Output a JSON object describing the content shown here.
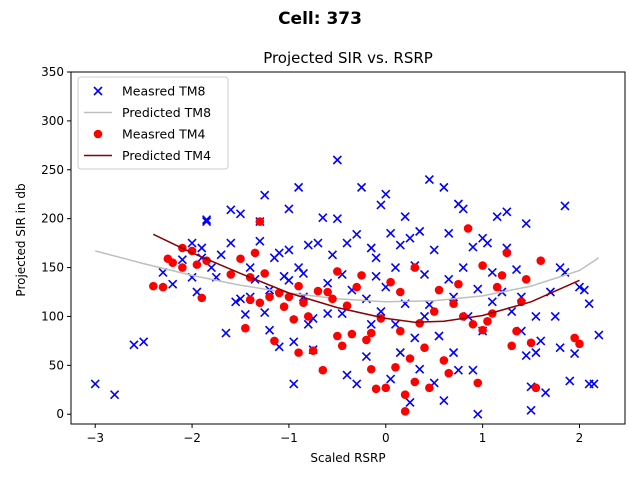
{
  "figure": {
    "suptitle": "Cell: 373"
  },
  "chart_data": {
    "type": "scatter",
    "title": "Projected SIR vs. RSRP",
    "xlabel": "Scaled RSRP",
    "ylabel": "Projected SIR in db",
    "xlim": [
      -3.25,
      2.47
    ],
    "ylim": [
      -10,
      350
    ],
    "xticks": [
      -3,
      -2,
      -1,
      0,
      1,
      2
    ],
    "yticks": [
      0,
      50,
      100,
      150,
      200,
      250,
      300,
      350
    ],
    "grid": false,
    "legend_placement": "top-left",
    "series": [
      {
        "name": "Measred TM8",
        "kind": "scatter",
        "marker": "x",
        "color": "#0000ff",
        "points": [
          [
            -3.0,
            31
          ],
          [
            -2.8,
            20
          ],
          [
            -2.6,
            71
          ],
          [
            -2.5,
            74
          ],
          [
            -2.3,
            145
          ],
          [
            -2.2,
            133
          ],
          [
            -2.1,
            158
          ],
          [
            -2.0,
            175
          ],
          [
            -2.0,
            140
          ],
          [
            -1.95,
            125
          ],
          [
            -1.9,
            160
          ],
          [
            -1.9,
            170
          ],
          [
            -1.85,
            199
          ],
          [
            -1.85,
            197
          ],
          [
            -1.8,
            150
          ],
          [
            -1.75,
            140
          ],
          [
            -1.7,
            163
          ],
          [
            -1.65,
            83
          ],
          [
            -1.6,
            209
          ],
          [
            -1.6,
            175
          ],
          [
            -1.55,
            115
          ],
          [
            -1.5,
            205
          ],
          [
            -1.5,
            118
          ],
          [
            -1.45,
            102
          ],
          [
            -1.4,
            150
          ],
          [
            -1.4,
            120
          ],
          [
            -1.35,
            138
          ],
          [
            -1.3,
            197
          ],
          [
            -1.3,
            177
          ],
          [
            -1.25,
            224
          ],
          [
            -1.25,
            104
          ],
          [
            -1.2,
            86
          ],
          [
            -1.2,
            127
          ],
          [
            -1.15,
            160
          ],
          [
            -1.1,
            69
          ],
          [
            -1.1,
            165
          ],
          [
            -1.05,
            141
          ],
          [
            -1.0,
            210
          ],
          [
            -1.0,
            168
          ],
          [
            -1.0,
            137
          ],
          [
            -0.95,
            31
          ],
          [
            -0.95,
            74
          ],
          [
            -0.9,
            150
          ],
          [
            -0.9,
            232
          ],
          [
            -0.85,
            120
          ],
          [
            -0.85,
            144
          ],
          [
            -0.8,
            92
          ],
          [
            -0.8,
            173
          ],
          [
            -0.75,
            98
          ],
          [
            -0.75,
            66
          ],
          [
            -0.7,
            175
          ],
          [
            -0.65,
            201
          ],
          [
            -0.6,
            134
          ],
          [
            -0.6,
            103
          ],
          [
            -0.55,
            163
          ],
          [
            -0.5,
            200
          ],
          [
            -0.5,
            260
          ],
          [
            -0.45,
            143
          ],
          [
            -0.45,
            103
          ],
          [
            -0.4,
            40
          ],
          [
            -0.4,
            175
          ],
          [
            -0.35,
            127
          ],
          [
            -0.3,
            184
          ],
          [
            -0.3,
            31
          ],
          [
            -0.25,
            232
          ],
          [
            -0.2,
            118
          ],
          [
            -0.2,
            59
          ],
          [
            -0.15,
            170
          ],
          [
            -0.15,
            92
          ],
          [
            -0.1,
            141
          ],
          [
            -0.1,
            160
          ],
          [
            -0.05,
            214
          ],
          [
            -0.05,
            105
          ],
          [
            0.0,
            225
          ],
          [
            0.0,
            130
          ],
          [
            0.05,
            36
          ],
          [
            0.05,
            185
          ],
          [
            0.1,
            150
          ],
          [
            0.1,
            92
          ],
          [
            0.15,
            63
          ],
          [
            0.15,
            173
          ],
          [
            0.2,
            202
          ],
          [
            0.2,
            113
          ],
          [
            0.25,
            12
          ],
          [
            0.25,
            180
          ],
          [
            0.3,
            78
          ],
          [
            0.3,
            152
          ],
          [
            0.35,
            187
          ],
          [
            0.35,
            46
          ],
          [
            0.4,
            100
          ],
          [
            0.4,
            143
          ],
          [
            0.45,
            240
          ],
          [
            0.45,
            112
          ],
          [
            0.5,
            32
          ],
          [
            0.5,
            168
          ],
          [
            0.55,
            80
          ],
          [
            0.6,
            232
          ],
          [
            0.6,
            14
          ],
          [
            0.65,
            138
          ],
          [
            0.65,
            185
          ],
          [
            0.7,
            63
          ],
          [
            0.7,
            120
          ],
          [
            0.75,
            215
          ],
          [
            0.75,
            45
          ],
          [
            0.8,
            150
          ],
          [
            0.8,
            210
          ],
          [
            0.85,
            100
          ],
          [
            0.9,
            45
          ],
          [
            0.9,
            171
          ],
          [
            0.95,
            0
          ],
          [
            0.95,
            128
          ],
          [
            1.0,
            180
          ],
          [
            1.0,
            85
          ],
          [
            1.05,
            175
          ],
          [
            1.1,
            145
          ],
          [
            1.1,
            115
          ],
          [
            1.15,
            202
          ],
          [
            1.2,
            125
          ],
          [
            1.25,
            207
          ],
          [
            1.25,
            170
          ],
          [
            1.3,
            105
          ],
          [
            1.35,
            148
          ],
          [
            1.4,
            85
          ],
          [
            1.4,
            120
          ],
          [
            1.45,
            60
          ],
          [
            1.45,
            195
          ],
          [
            1.5,
            28
          ],
          [
            1.5,
            4
          ],
          [
            1.55,
            100
          ],
          [
            1.55,
            63
          ],
          [
            1.6,
            75
          ],
          [
            1.65,
            22
          ],
          [
            1.7,
            125
          ],
          [
            1.75,
            100
          ],
          [
            1.8,
            68
          ],
          [
            1.8,
            150
          ],
          [
            1.85,
            145
          ],
          [
            1.85,
            213
          ],
          [
            1.9,
            34
          ],
          [
            1.95,
            62
          ],
          [
            2.0,
            130
          ],
          [
            2.05,
            127
          ],
          [
            2.1,
            113
          ],
          [
            2.1,
            31
          ],
          [
            2.15,
            31
          ],
          [
            2.2,
            81
          ]
        ]
      },
      {
        "name": "Predicted TM8",
        "kind": "line",
        "color": "#bfbfbf",
        "points": [
          [
            -3.0,
            167
          ],
          [
            -2.5,
            154
          ],
          [
            -2.0,
            142
          ],
          [
            -1.5,
            132
          ],
          [
            -1.0,
            124
          ],
          [
            -0.5,
            118
          ],
          [
            0.0,
            115
          ],
          [
            0.5,
            116
          ],
          [
            1.0,
            121
          ],
          [
            1.5,
            131
          ],
          [
            2.0,
            147
          ],
          [
            2.2,
            160
          ]
        ]
      },
      {
        "name": "Measred TM4",
        "kind": "scatter",
        "marker": "o",
        "color": "#ff0000",
        "points": [
          [
            -2.4,
            131
          ],
          [
            -2.3,
            130
          ],
          [
            -2.25,
            159
          ],
          [
            -2.2,
            155
          ],
          [
            -2.1,
            170
          ],
          [
            -2.1,
            150
          ],
          [
            -2.0,
            167
          ],
          [
            -1.95,
            153
          ],
          [
            -1.9,
            119
          ],
          [
            -1.85,
            157
          ],
          [
            -1.6,
            143
          ],
          [
            -1.5,
            159
          ],
          [
            -1.45,
            88
          ],
          [
            -1.4,
            117
          ],
          [
            -1.4,
            140
          ],
          [
            -1.35,
            165
          ],
          [
            -1.3,
            114
          ],
          [
            -1.3,
            197
          ],
          [
            -1.25,
            144
          ],
          [
            -1.2,
            120
          ],
          [
            -1.15,
            75
          ],
          [
            -1.1,
            124
          ],
          [
            -1.05,
            110
          ],
          [
            -1.0,
            120
          ],
          [
            -0.95,
            97
          ],
          [
            -0.9,
            63
          ],
          [
            -0.9,
            131
          ],
          [
            -0.85,
            114
          ],
          [
            -0.8,
            100
          ],
          [
            -0.75,
            65
          ],
          [
            -0.7,
            126
          ],
          [
            -0.65,
            45
          ],
          [
            -0.6,
            125
          ],
          [
            -0.55,
            118
          ],
          [
            -0.5,
            80
          ],
          [
            -0.5,
            146
          ],
          [
            -0.45,
            70
          ],
          [
            -0.4,
            111
          ],
          [
            -0.35,
            82
          ],
          [
            -0.3,
            130
          ],
          [
            -0.25,
            142
          ],
          [
            -0.2,
            76
          ],
          [
            -0.15,
            46
          ],
          [
            -0.15,
            83
          ],
          [
            -0.1,
            26
          ],
          [
            -0.05,
            98
          ],
          [
            0.0,
            27
          ],
          [
            0.05,
            135
          ],
          [
            0.1,
            48
          ],
          [
            0.15,
            85
          ],
          [
            0.15,
            125
          ],
          [
            0.2,
            3
          ],
          [
            0.2,
            20
          ],
          [
            0.25,
            57
          ],
          [
            0.3,
            150
          ],
          [
            0.3,
            33
          ],
          [
            0.35,
            93
          ],
          [
            0.4,
            68
          ],
          [
            0.45,
            27
          ],
          [
            0.5,
            105
          ],
          [
            0.55,
            127
          ],
          [
            0.6,
            55
          ],
          [
            0.65,
            42
          ],
          [
            0.7,
            113
          ],
          [
            0.75,
            133
          ],
          [
            0.8,
            100
          ],
          [
            0.85,
            190
          ],
          [
            0.9,
            92
          ],
          [
            0.95,
            32
          ],
          [
            1.0,
            152
          ],
          [
            1.0,
            86
          ],
          [
            1.05,
            95
          ],
          [
            1.1,
            103
          ],
          [
            1.15,
            130
          ],
          [
            1.2,
            142
          ],
          [
            1.25,
            165
          ],
          [
            1.3,
            70
          ],
          [
            1.35,
            85
          ],
          [
            1.4,
            115
          ],
          [
            1.45,
            138
          ],
          [
            1.5,
            73
          ],
          [
            1.55,
            27
          ],
          [
            1.6,
            157
          ],
          [
            1.95,
            78
          ],
          [
            2.0,
            72
          ]
        ]
      },
      {
        "name": "Predicted TM4",
        "kind": "line",
        "color": "#8b0000",
        "points": [
          [
            -2.4,
            184
          ],
          [
            -2.0,
            165
          ],
          [
            -1.5,
            144
          ],
          [
            -1.0,
            124
          ],
          [
            -0.5,
            109
          ],
          [
            0.0,
            98
          ],
          [
            0.3,
            94
          ],
          [
            0.6,
            95
          ],
          [
            1.0,
            101
          ],
          [
            1.5,
            115
          ],
          [
            2.0,
            137
          ]
        ]
      }
    ]
  }
}
